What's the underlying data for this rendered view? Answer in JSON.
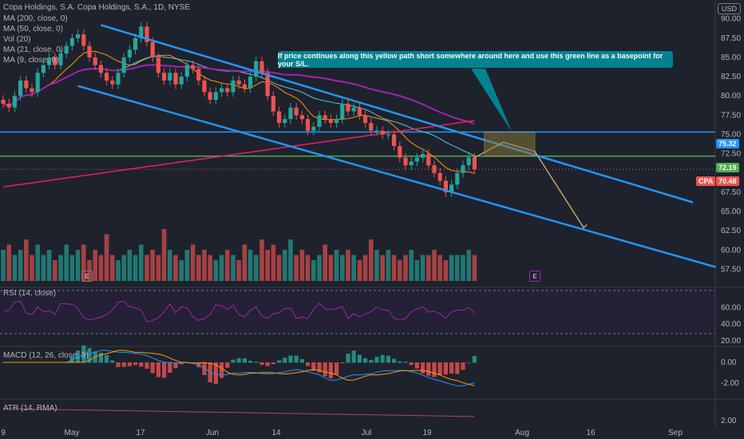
{
  "header": {
    "title": "Copa Holdings, S.A. Copa Holdings, S.A., 1D, NYSE",
    "indicators": [
      "MA (200, close, 0)",
      "MA (50, close, 0)",
      "Vol (20)",
      "MA (21, close, 0)",
      "MA (9, close, 0)"
    ],
    "currency": "USD"
  },
  "callout": {
    "text": "If price continues along this yellow path short somewhere around here and use this green line as a basepoint for your S/L."
  },
  "badges": {
    "blue_line": "75.32",
    "green_line": "72.19",
    "ticker": "CPA",
    "last": "70.48"
  },
  "earnings": [
    "E",
    "E"
  ],
  "x_ticks": [
    "9",
    "May",
    "17",
    "Jun",
    "14",
    "Jul",
    "19",
    "Aug",
    "16",
    "Sep"
  ],
  "panes": {
    "rsi_label": "RSI (14, close)",
    "macd_label": "MACD (12, 26, close, 9)",
    "atr_label": "ATR (14, RMA)"
  },
  "colors": {
    "up": "#26a69a",
    "down": "#ef5350",
    "channel": "#2196f3",
    "green_line": "#4caf50",
    "ma200": "#e91e63",
    "ma50": "#9c27b0",
    "ma21": "#4dd0e1",
    "ma9": "#ff9800",
    "callout_bg": "#00838f",
    "projection": "#c8a26a"
  },
  "chart_data": {
    "type": "candlestick",
    "title": "Copa Holdings, S.A. Copa Holdings, S.A., 1D, NYSE",
    "ylim": [
      56,
      91
    ],
    "y_ticks": [
      90.0,
      87.5,
      85.0,
      82.5,
      80.0,
      77.5,
      75.0,
      72.5,
      67.5,
      65.0,
      62.5,
      60.0,
      57.5
    ],
    "horizontal_lines": [
      {
        "value": 75.32,
        "color": "blue"
      },
      {
        "value": 72.19,
        "color": "green"
      }
    ],
    "last_price": 70.48,
    "close": [
      79,
      78.5,
      80,
      82,
      81,
      80.5,
      83,
      84,
      85,
      84,
      85.5,
      86.5,
      87.5,
      88,
      86.5,
      85,
      84,
      83,
      82,
      81.5,
      83,
      85,
      86,
      87.5,
      89,
      87,
      85,
      83,
      82,
      83,
      81.5,
      82.5,
      84,
      83.5,
      82,
      80.5,
      79.5,
      80.5,
      81,
      80.5,
      82,
      81.5,
      81,
      82.5,
      84.5,
      83,
      80,
      78,
      76.5,
      77,
      78.5,
      77.5,
      77,
      75.5,
      76,
      77.5,
      77,
      76.5,
      77,
      79,
      78,
      78.5,
      77.5,
      76.5,
      75.5,
      75.5,
      75,
      75,
      73.5,
      72,
      71,
      71.5,
      72,
      72.5,
      71,
      70,
      69,
      67.5,
      68.5,
      70,
      71,
      72,
      70.5
    ],
    "volume_relative": [
      0.6,
      0.7,
      0.5,
      0.6,
      0.8,
      0.5,
      0.7,
      0.5,
      0.6,
      0.4,
      0.5,
      0.7,
      0.5,
      0.6,
      0.7,
      0.4,
      0.6,
      0.5,
      0.9,
      0.5,
      0.4,
      0.5,
      0.6,
      0.5,
      0.7,
      0.5,
      0.6,
      0.5,
      1.0,
      0.6,
      0.5,
      0.4,
      0.6,
      0.7,
      0.5,
      0.6,
      0.5,
      0.4,
      0.5,
      0.6,
      0.5,
      0.4,
      0.7,
      0.6,
      0.5,
      0.8,
      0.6,
      0.7,
      0.5,
      0.6,
      0.8,
      0.5,
      0.6,
      0.5,
      0.4,
      0.5,
      0.7,
      0.5,
      0.6,
      0.5,
      0.6,
      0.5,
      0.4,
      0.5,
      0.8,
      0.6,
      0.5,
      0.6,
      0.5,
      0.4,
      0.5,
      0.6,
      0.4,
      0.5,
      0.5,
      0.6,
      0.5,
      0.4,
      0.5,
      0.5,
      0.5,
      0.6,
      0.5
    ],
    "rsi_ylim": [
      20,
      70
    ],
    "rsi_ticks": [
      60.0,
      40.0,
      20.0
    ],
    "macd_ticks": [
      0.0,
      -2.0
    ],
    "atr_ticks": [
      2.0
    ]
  }
}
